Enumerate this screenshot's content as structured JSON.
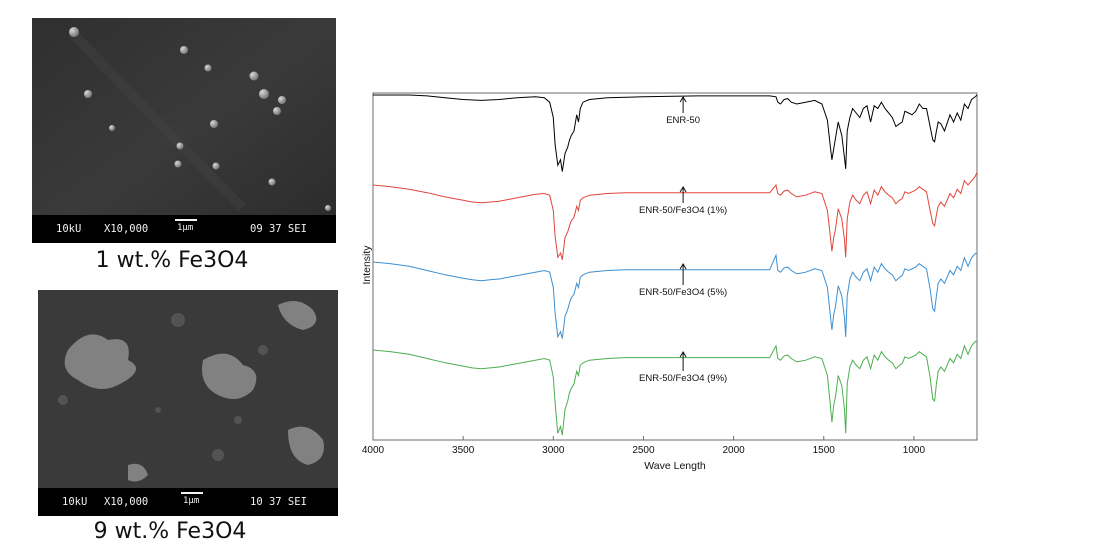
{
  "sem_images": [
    {
      "caption": "1 wt.% Fe3O4",
      "voltage": "10kU",
      "magnification": "X10,000",
      "scale": "1μm",
      "meta": "09 37 SEI"
    },
    {
      "caption": "9 wt.% Fe3O4",
      "voltage": "10kU",
      "magnification": "X10,000",
      "scale": "1μm",
      "meta": "10 37 SEI"
    }
  ],
  "chart_data": {
    "type": "line",
    "title": "",
    "xlabel": "Wave Length",
    "ylabel": "Intensity",
    "xlim": [
      4000,
      650
    ],
    "x_reversed": true,
    "x_ticks": [
      4000,
      3500,
      3000,
      2500,
      2000,
      1500,
      1000
    ],
    "y_ticks_shown": false,
    "y_units": "arbitrary (offset traces)",
    "grid": false,
    "series": [
      {
        "name": "ENR-50",
        "color": "#000000",
        "annotation_x": 2280,
        "x": [
          4000,
          3800,
          3700,
          3600,
          3500,
          3400,
          3300,
          3200,
          3100,
          3050,
          3020,
          3000,
          2990,
          2975,
          2960,
          2950,
          2935,
          2920,
          2910,
          2900,
          2885,
          2870,
          2860,
          2850,
          2835,
          2800,
          2700,
          2500,
          2200,
          1800,
          1765,
          1755,
          1740,
          1720,
          1700,
          1680,
          1650,
          1600,
          1550,
          1510,
          1480,
          1465,
          1455,
          1445,
          1435,
          1420,
          1400,
          1385,
          1378,
          1370,
          1355,
          1340,
          1320,
          1300,
          1280,
          1260,
          1240,
          1220,
          1200,
          1180,
          1160,
          1140,
          1120,
          1100,
          1080,
          1065,
          1050,
          1030,
          1010,
          990,
          970,
          950,
          930,
          910,
          895,
          885,
          875,
          865,
          850,
          830,
          800,
          780,
          760,
          740,
          720,
          700,
          680,
          660,
          650
        ],
        "y": [
          0.0,
          0.0,
          -0.01,
          -0.03,
          -0.05,
          -0.06,
          -0.05,
          -0.03,
          -0.02,
          -0.03,
          -0.08,
          -0.25,
          -0.55,
          -0.78,
          -0.72,
          -0.85,
          -0.65,
          -0.58,
          -0.5,
          -0.45,
          -0.4,
          -0.22,
          -0.3,
          -0.15,
          -0.08,
          -0.05,
          -0.03,
          -0.02,
          -0.01,
          -0.01,
          -0.02,
          -0.08,
          -0.1,
          -0.05,
          -0.04,
          -0.08,
          -0.1,
          -0.08,
          -0.06,
          -0.1,
          -0.28,
          -0.55,
          -0.72,
          -0.6,
          -0.48,
          -0.3,
          -0.45,
          -0.7,
          -0.82,
          -0.4,
          -0.25,
          -0.15,
          -0.2,
          -0.25,
          -0.15,
          -0.12,
          -0.3,
          -0.12,
          -0.15,
          -0.08,
          -0.15,
          -0.2,
          -0.25,
          -0.35,
          -0.32,
          -0.3,
          -0.18,
          -0.2,
          -0.22,
          -0.18,
          -0.1,
          -0.15,
          -0.15,
          -0.35,
          -0.5,
          -0.52,
          -0.4,
          -0.3,
          -0.32,
          -0.4,
          -0.22,
          -0.3,
          -0.2,
          -0.28,
          -0.1,
          -0.15,
          -0.05,
          -0.02,
          0.0
        ]
      },
      {
        "name": "ENR-50/Fe3O4 (1%)",
        "color": "#e2453c",
        "annotation_x": 2280,
        "x": [
          4000,
          3900,
          3800,
          3700,
          3600,
          3500,
          3450,
          3400,
          3350,
          3300,
          3250,
          3200,
          3150,
          3100,
          3050,
          3020,
          3000,
          2990,
          2975,
          2960,
          2950,
          2935,
          2920,
          2910,
          2900,
          2885,
          2870,
          2860,
          2850,
          2835,
          2800,
          2700,
          2600,
          2400,
          2200,
          2000,
          1800,
          1765,
          1755,
          1740,
          1720,
          1700,
          1680,
          1650,
          1600,
          1550,
          1510,
          1480,
          1465,
          1455,
          1445,
          1435,
          1420,
          1400,
          1385,
          1378,
          1370,
          1355,
          1340,
          1320,
          1300,
          1280,
          1260,
          1240,
          1220,
          1200,
          1180,
          1160,
          1140,
          1120,
          1100,
          1080,
          1065,
          1050,
          1030,
          1010,
          990,
          970,
          950,
          930,
          910,
          895,
          885,
          875,
          865,
          850,
          830,
          800,
          780,
          760,
          740,
          720,
          700,
          680,
          660,
          650
        ],
        "y": [
          0.0,
          -0.02,
          -0.05,
          -0.09,
          -0.14,
          -0.18,
          -0.2,
          -0.21,
          -0.2,
          -0.19,
          -0.17,
          -0.15,
          -0.13,
          -0.11,
          -0.1,
          -0.12,
          -0.3,
          -0.6,
          -0.85,
          -0.8,
          -0.88,
          -0.62,
          -0.55,
          -0.48,
          -0.42,
          -0.38,
          -0.25,
          -0.3,
          -0.18,
          -0.15,
          -0.12,
          -0.1,
          -0.09,
          -0.09,
          -0.09,
          -0.09,
          -0.09,
          0.0,
          -0.1,
          -0.12,
          -0.07,
          -0.06,
          -0.1,
          -0.14,
          -0.12,
          -0.08,
          -0.1,
          -0.3,
          -0.58,
          -0.78,
          -0.62,
          -0.52,
          -0.28,
          -0.4,
          -0.65,
          -0.85,
          -0.4,
          -0.2,
          -0.12,
          -0.18,
          -0.22,
          -0.12,
          -0.08,
          -0.22,
          -0.06,
          -0.12,
          -0.02,
          -0.08,
          -0.12,
          -0.15,
          -0.22,
          -0.18,
          -0.16,
          -0.08,
          -0.1,
          -0.08,
          -0.06,
          -0.02,
          -0.05,
          -0.08,
          -0.3,
          -0.45,
          -0.48,
          -0.35,
          -0.25,
          -0.2,
          -0.25,
          -0.1,
          -0.15,
          -0.05,
          -0.1,
          0.05,
          0.0,
          0.05,
          0.1,
          0.15
        ]
      },
      {
        "name": "ENR-50/Fe3O4 (5%)",
        "color": "#3d8fd1",
        "annotation_x": 2280,
        "x": [
          4000,
          3900,
          3800,
          3700,
          3600,
          3500,
          3450,
          3400,
          3350,
          3300,
          3250,
          3200,
          3150,
          3100,
          3050,
          3020,
          3000,
          2990,
          2975,
          2960,
          2950,
          2935,
          2920,
          2910,
          2900,
          2885,
          2870,
          2860,
          2850,
          2835,
          2800,
          2700,
          2600,
          2400,
          2200,
          2000,
          1800,
          1765,
          1755,
          1740,
          1720,
          1700,
          1680,
          1650,
          1600,
          1550,
          1510,
          1480,
          1465,
          1455,
          1445,
          1435,
          1420,
          1400,
          1385,
          1378,
          1370,
          1355,
          1340,
          1320,
          1300,
          1280,
          1260,
          1240,
          1220,
          1200,
          1180,
          1160,
          1140,
          1120,
          1100,
          1080,
          1065,
          1050,
          1030,
          1010,
          990,
          970,
          950,
          930,
          910,
          895,
          885,
          875,
          865,
          850,
          830,
          800,
          780,
          760,
          740,
          720,
          700,
          680,
          660,
          650
        ],
        "y": [
          0.0,
          -0.02,
          -0.05,
          -0.1,
          -0.15,
          -0.19,
          -0.21,
          -0.22,
          -0.21,
          -0.2,
          -0.18,
          -0.16,
          -0.14,
          -0.12,
          -0.1,
          -0.12,
          -0.3,
          -0.6,
          -0.88,
          -0.82,
          -0.9,
          -0.64,
          -0.56,
          -0.48,
          -0.42,
          -0.38,
          -0.25,
          -0.3,
          -0.18,
          -0.15,
          -0.12,
          -0.1,
          -0.09,
          -0.09,
          -0.09,
          -0.09,
          -0.09,
          0.08,
          -0.1,
          -0.12,
          -0.07,
          -0.06,
          -0.1,
          -0.14,
          -0.12,
          -0.08,
          -0.1,
          -0.3,
          -0.6,
          -0.8,
          -0.62,
          -0.52,
          -0.28,
          -0.4,
          -0.66,
          -0.88,
          -0.4,
          -0.2,
          -0.12,
          -0.18,
          -0.22,
          -0.12,
          -0.08,
          -0.22,
          -0.06,
          -0.12,
          -0.02,
          -0.08,
          -0.12,
          -0.15,
          -0.22,
          -0.18,
          -0.16,
          -0.08,
          -0.1,
          -0.08,
          -0.06,
          -0.02,
          -0.05,
          -0.08,
          -0.32,
          -0.55,
          -0.58,
          -0.4,
          -0.25,
          -0.2,
          -0.25,
          -0.1,
          -0.15,
          -0.05,
          -0.1,
          0.05,
          -0.05,
          0.05,
          0.1,
          0.1
        ]
      },
      {
        "name": "ENR-50/Fe3O4 (9%)",
        "color": "#4caf50",
        "annotation_x": 2280,
        "x": [
          4000,
          3900,
          3800,
          3700,
          3600,
          3500,
          3450,
          3400,
          3350,
          3300,
          3250,
          3200,
          3150,
          3100,
          3050,
          3020,
          3000,
          2990,
          2975,
          2960,
          2950,
          2935,
          2920,
          2910,
          2900,
          2885,
          2870,
          2860,
          2850,
          2835,
          2800,
          2700,
          2600,
          2400,
          2200,
          2000,
          1800,
          1765,
          1755,
          1740,
          1720,
          1700,
          1680,
          1650,
          1600,
          1550,
          1510,
          1480,
          1465,
          1455,
          1445,
          1435,
          1420,
          1400,
          1385,
          1378,
          1370,
          1355,
          1340,
          1320,
          1300,
          1280,
          1260,
          1240,
          1220,
          1200,
          1180,
          1160,
          1140,
          1120,
          1100,
          1080,
          1065,
          1050,
          1030,
          1010,
          990,
          970,
          950,
          930,
          910,
          895,
          885,
          875,
          865,
          850,
          830,
          800,
          780,
          760,
          740,
          720,
          700,
          680,
          660,
          650
        ],
        "y": [
          0.0,
          -0.02,
          -0.05,
          -0.1,
          -0.15,
          -0.19,
          -0.21,
          -0.22,
          -0.21,
          -0.2,
          -0.18,
          -0.16,
          -0.14,
          -0.12,
          -0.1,
          -0.12,
          -0.32,
          -0.62,
          -0.98,
          -0.9,
          -1.0,
          -0.7,
          -0.6,
          -0.5,
          -0.45,
          -0.4,
          -0.25,
          -0.3,
          -0.18,
          -0.15,
          -0.12,
          -0.1,
          -0.09,
          -0.09,
          -0.09,
          -0.09,
          -0.09,
          0.05,
          -0.1,
          -0.12,
          -0.07,
          -0.06,
          -0.1,
          -0.14,
          -0.12,
          -0.08,
          -0.1,
          -0.3,
          -0.62,
          -0.85,
          -0.65,
          -0.55,
          -0.3,
          -0.42,
          -0.7,
          -0.98,
          -0.4,
          -0.2,
          -0.12,
          -0.18,
          -0.22,
          -0.12,
          -0.08,
          -0.22,
          -0.06,
          -0.12,
          -0.02,
          -0.08,
          -0.12,
          -0.15,
          -0.22,
          -0.18,
          -0.16,
          -0.08,
          -0.1,
          -0.08,
          -0.06,
          -0.02,
          -0.05,
          -0.08,
          -0.32,
          -0.58,
          -0.6,
          -0.4,
          -0.25,
          -0.2,
          -0.25,
          -0.1,
          -0.15,
          -0.05,
          -0.1,
          0.05,
          -0.05,
          0.05,
          0.1,
          0.1
        ]
      }
    ]
  }
}
